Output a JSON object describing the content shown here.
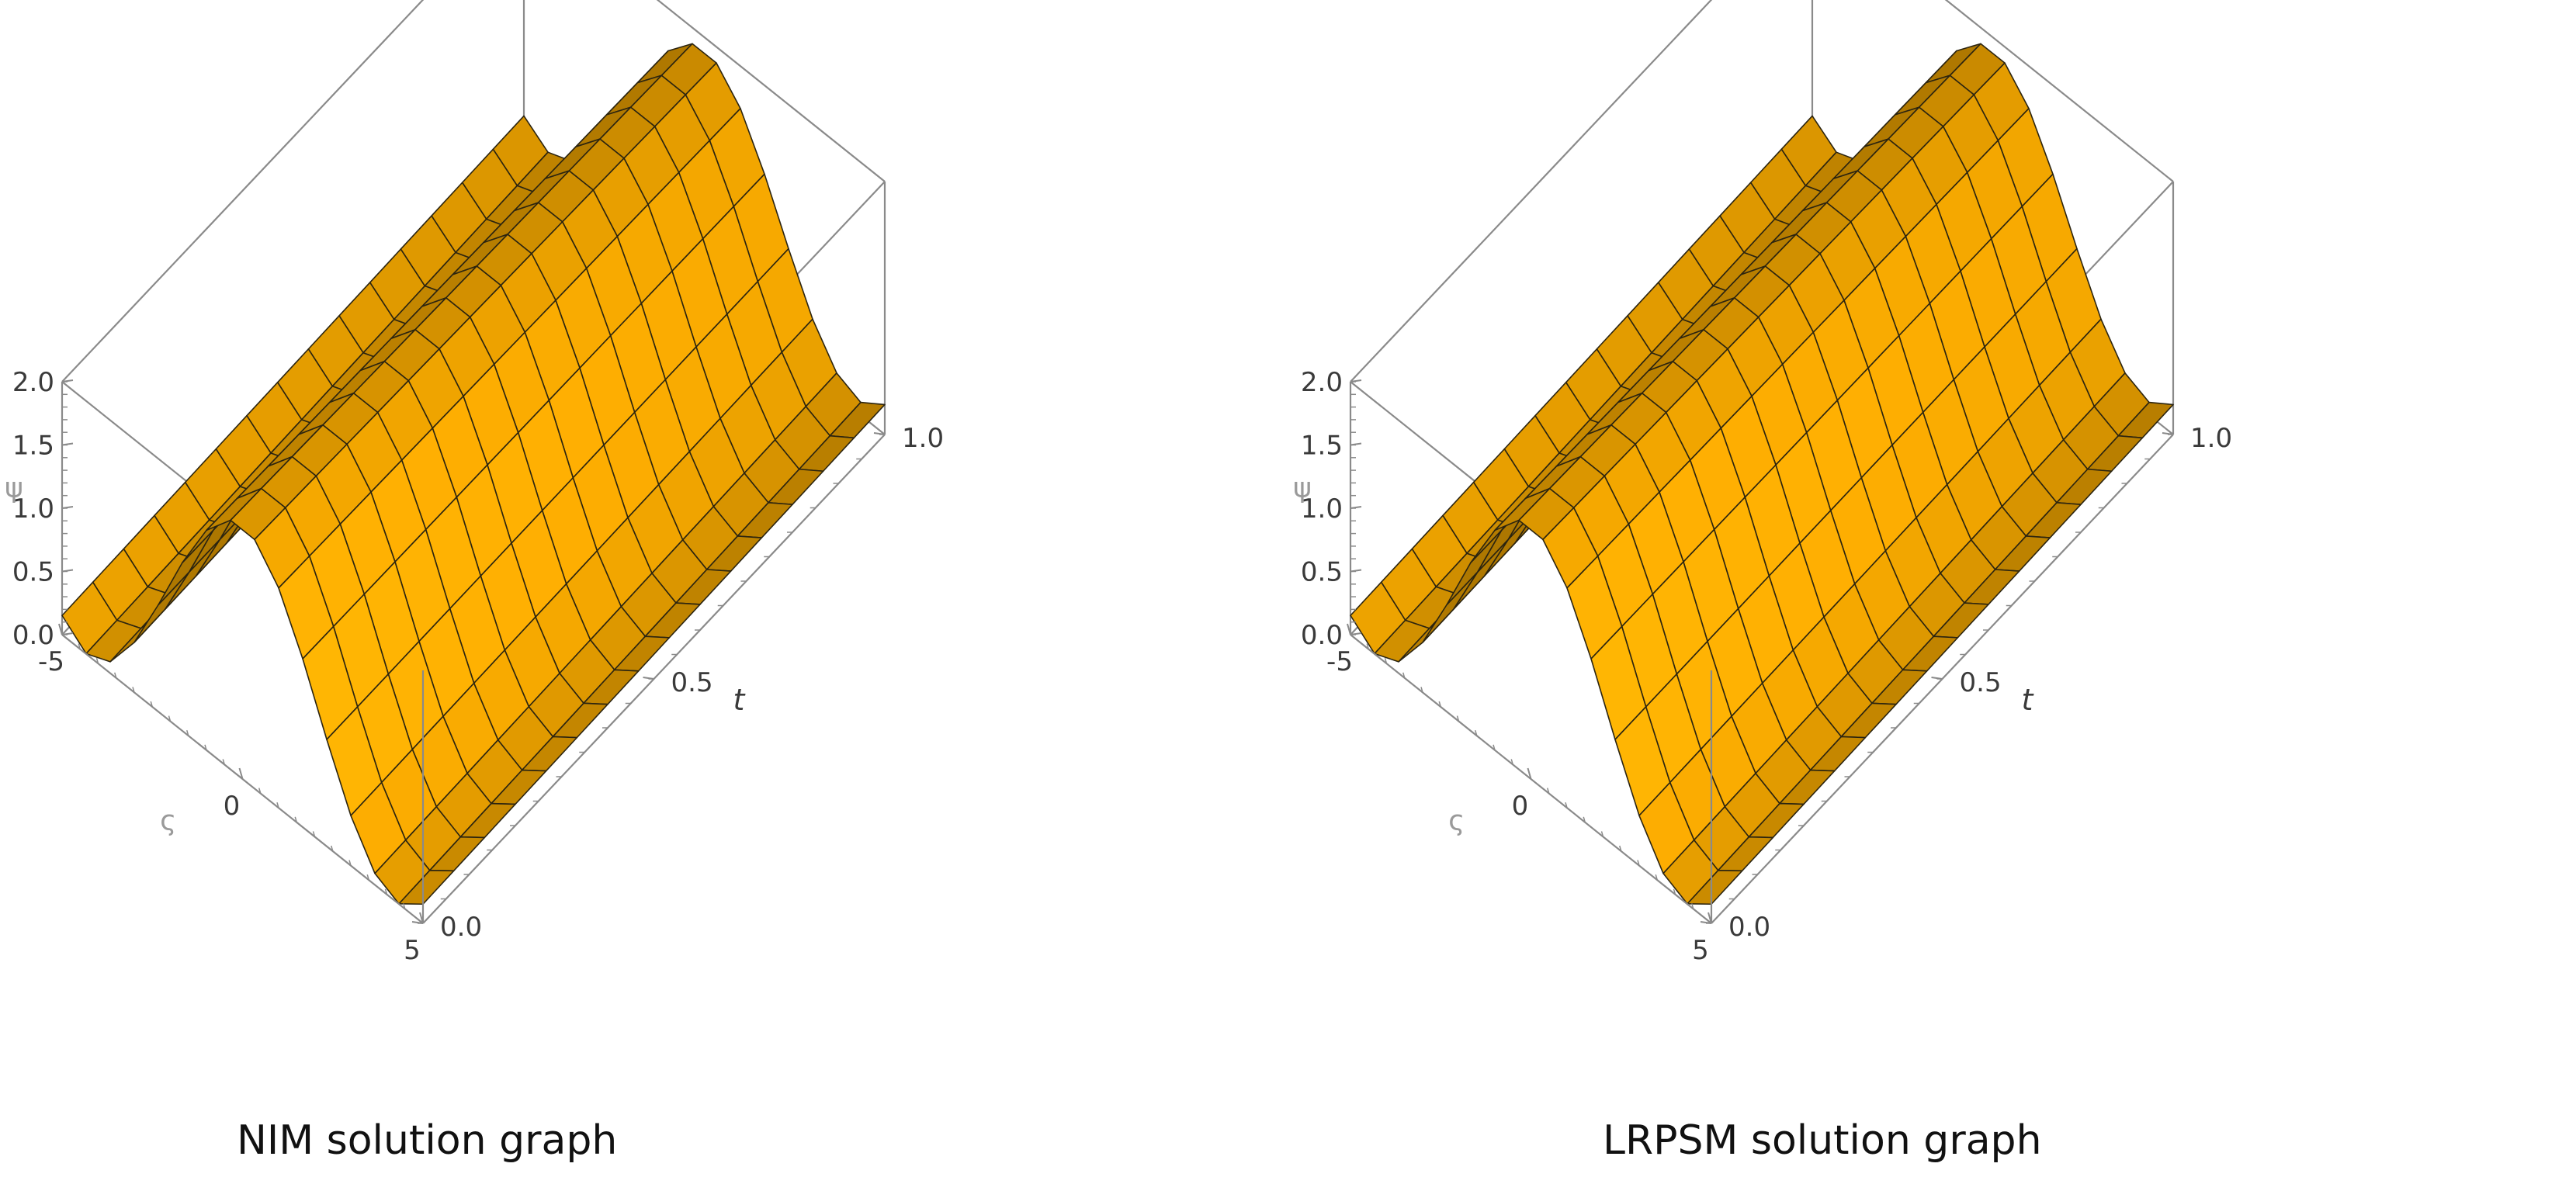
{
  "chart_data": [
    {
      "type": "surface3d",
      "caption": "NIM solution graph",
      "x": {
        "label": "ς",
        "range": [
          -5,
          5
        ],
        "ticks": [
          "-5",
          "0",
          "5"
        ]
      },
      "y": {
        "label": "t",
        "range": [
          0,
          1
        ],
        "ticks": [
          "0.0",
          "0.5",
          "1.0"
        ]
      },
      "z": {
        "label": "ψ",
        "range": [
          0,
          2
        ],
        "ticks": [
          "0.0",
          "0.5",
          "1.0",
          "1.5",
          "2.0"
        ]
      },
      "surface": "ψ(ς,t) ≈ 1 + cos(0.74·ς)·(1 − 0.1·t)",
      "mesh": "15 × 15",
      "color": "#F5A800"
    },
    {
      "type": "surface3d",
      "caption": "LRPSM solution graph",
      "x": {
        "label": "ς",
        "range": [
          -5,
          5
        ],
        "ticks": [
          "-5",
          "0",
          "5"
        ]
      },
      "y": {
        "label": "t",
        "range": [
          0,
          1
        ],
        "ticks": [
          "0.0",
          "0.5",
          "1.0"
        ]
      },
      "z": {
        "label": "ψ",
        "range": [
          0,
          2
        ],
        "ticks": [
          "0.0",
          "0.5",
          "1.0",
          "1.5",
          "2.0"
        ]
      },
      "surface": "ψ(ς,t) ≈ 1 + cos(0.74·ς)·(1 − 0.1·t)",
      "mesh": "15 × 15",
      "color": "#F5A800"
    }
  ]
}
